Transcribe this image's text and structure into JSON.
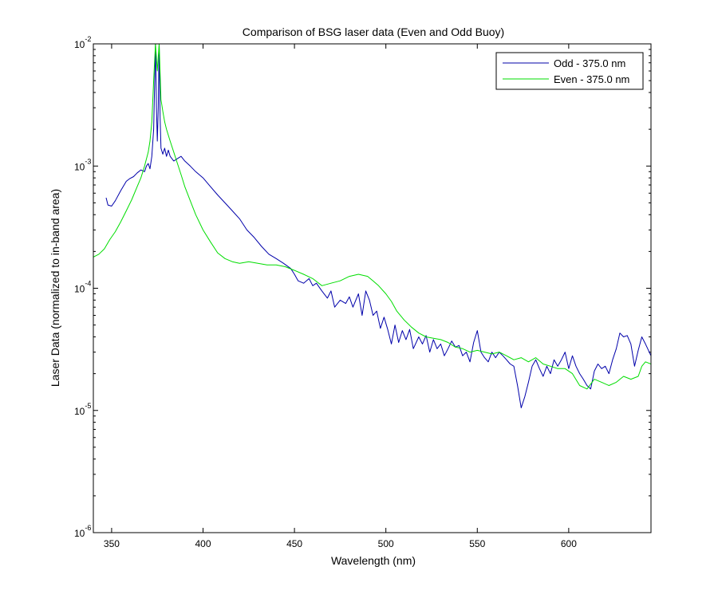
{
  "chart_data": {
    "type": "line",
    "title": "Comparison of BSG laser data (Even and Odd Buoy)",
    "xlabel": "Wavelength (nm)",
    "ylabel": "Laser Data (normalized to in-band area)",
    "xlim": [
      340,
      645
    ],
    "ylim": [
      1e-06,
      0.01
    ],
    "yscale": "log",
    "xticks": [
      350,
      400,
      450,
      500,
      550,
      600
    ],
    "yticks": [
      {
        "value": 1e-06,
        "base": "10",
        "exp": "-6"
      },
      {
        "value": 1e-05,
        "base": "10",
        "exp": "-5"
      },
      {
        "value": 0.0001,
        "base": "10",
        "exp": "-4"
      },
      {
        "value": 0.001,
        "base": "10",
        "exp": "-3"
      },
      {
        "value": 0.01,
        "base": "10",
        "exp": "-2"
      }
    ],
    "grid": false,
    "legend": "top-right",
    "series": [
      {
        "name": "Odd - 375.0 nm",
        "color": "#0000aa",
        "x": [
          347,
          348,
          350,
          352,
          355,
          358,
          360,
          362,
          364,
          366,
          368,
          369,
          370,
          371,
          372,
          373,
          374,
          374.5,
          375,
          375.5,
          376,
          376.5,
          377,
          378,
          379,
          380,
          381,
          382,
          383,
          384,
          386,
          388,
          390,
          393,
          396,
          400,
          404,
          408,
          412,
          416,
          420,
          424,
          428,
          432,
          436,
          440,
          444,
          448,
          450,
          452,
          455,
          458,
          460,
          462,
          465,
          468,
          470,
          472,
          475,
          478,
          480,
          482,
          485,
          487,
          489,
          491,
          493,
          495,
          497,
          499,
          501,
          503,
          505,
          507,
          509,
          511,
          513,
          515,
          518,
          520,
          522,
          524,
          526,
          528,
          530,
          532,
          534,
          536,
          538,
          540,
          542,
          544,
          546,
          548,
          550,
          552,
          554,
          556,
          558,
          560,
          562,
          564,
          566,
          568,
          570,
          572,
          574,
          576,
          578,
          580,
          582,
          584,
          586,
          588,
          590,
          592,
          594,
          596,
          598,
          600,
          602,
          604,
          606,
          608,
          610,
          612,
          614,
          616,
          618,
          620,
          622,
          624,
          626,
          628,
          630,
          632,
          634,
          636,
          638,
          640,
          642,
          645
        ],
        "y": [
          0.00055,
          0.00048,
          0.00047,
          0.00052,
          0.00063,
          0.00075,
          0.00079,
          0.00082,
          0.00088,
          0.00093,
          0.0009,
          0.001,
          0.00105,
          0.00095,
          0.0012,
          0.002,
          0.01,
          0.003,
          0.0016,
          0.003,
          0.01,
          0.0025,
          0.0014,
          0.00125,
          0.0014,
          0.0012,
          0.00135,
          0.0012,
          0.00115,
          0.0011,
          0.00115,
          0.0012,
          0.0011,
          0.001,
          0.0009,
          0.0008,
          0.00068,
          0.00058,
          0.0005,
          0.00043,
          0.00037,
          0.0003,
          0.00026,
          0.00022,
          0.00019,
          0.000175,
          0.00016,
          0.000145,
          0.00013,
          0.000115,
          0.00011,
          0.00012,
          0.000105,
          0.00011,
          9.5e-05,
          8.3e-05,
          9.5e-05,
          7e-05,
          8e-05,
          7.5e-05,
          8.5e-05,
          7e-05,
          9e-05,
          6e-05,
          9.5e-05,
          8e-05,
          6e-05,
          6.5e-05,
          4.7e-05,
          5.8e-05,
          4.6e-05,
          3.5e-05,
          5e-05,
          3.6e-05,
          4.5e-05,
          3.8e-05,
          4.6e-05,
          3.2e-05,
          4e-05,
          3.5e-05,
          4.1e-05,
          3e-05,
          3.8e-05,
          3.2e-05,
          3.5e-05,
          2.8e-05,
          3.2e-05,
          3.7e-05,
          3.3e-05,
          3.4e-05,
          2.8e-05,
          3e-05,
          2.5e-05,
          3.6e-05,
          4.5e-05,
          3e-05,
          2.7e-05,
          2.5e-05,
          3e-05,
          2.7e-05,
          3e-05,
          2.8e-05,
          2.6e-05,
          2.4e-05,
          2.3e-05,
          1.6e-05,
          1.05e-05,
          1.3e-05,
          1.7e-05,
          2.3e-05,
          2.6e-05,
          2.2e-05,
          1.9e-05,
          2.3e-05,
          2e-05,
          2.6e-05,
          2.3e-05,
          2.6e-05,
          3e-05,
          2.2e-05,
          2.8e-05,
          2.3e-05,
          2e-05,
          1.8e-05,
          1.6e-05,
          1.5e-05,
          2.1e-05,
          2.4e-05,
          2.2e-05,
          2.3e-05,
          2e-05,
          2.6e-05,
          3.2e-05,
          4.3e-05,
          4e-05,
          4.1e-05,
          3.5e-05,
          2.3e-05,
          3.1e-05,
          4e-05,
          3.5e-05,
          2.8e-05
        ]
      },
      {
        "name": "Even - 375.0 nm",
        "color": "#00dd00",
        "x": [
          340,
          343,
          346,
          349,
          352,
          355,
          358,
          361,
          364,
          366,
          368,
          370,
          371,
          372,
          373,
          374,
          375,
          376,
          377,
          378,
          379,
          380,
          382,
          384,
          386,
          388,
          390,
          393,
          396,
          400,
          404,
          408,
          412,
          416,
          420,
          425,
          430,
          435,
          440,
          445,
          450,
          455,
          460,
          465,
          470,
          475,
          480,
          485,
          490,
          493,
          496,
          500,
          503,
          506,
          510,
          514,
          518,
          522,
          526,
          530,
          534,
          538,
          542,
          546,
          550,
          554,
          558,
          562,
          566,
          570,
          574,
          578,
          582,
          586,
          590,
          594,
          598,
          602,
          606,
          610,
          614,
          618,
          622,
          626,
          630,
          634,
          638,
          640,
          642,
          645
        ],
        "y": [
          0.00018,
          0.00019,
          0.00021,
          0.00025,
          0.00029,
          0.00035,
          0.00043,
          0.00053,
          0.00068,
          0.0008,
          0.001,
          0.0013,
          0.0016,
          0.0023,
          0.005,
          0.01,
          0.006,
          0.01,
          0.0035,
          0.0028,
          0.0023,
          0.002,
          0.0016,
          0.0013,
          0.00105,
          0.00085,
          0.00068,
          0.00052,
          0.0004,
          0.0003,
          0.00024,
          0.000195,
          0.000175,
          0.000165,
          0.00016,
          0.000165,
          0.00016,
          0.000155,
          0.000155,
          0.00015,
          0.00014,
          0.00013,
          0.00012,
          0.000105,
          0.00011,
          0.000115,
          0.000125,
          0.00013,
          0.000125,
          0.000115,
          0.000105,
          9e-05,
          7.8e-05,
          6.5e-05,
          5.5e-05,
          4.8e-05,
          4.3e-05,
          4e-05,
          3.9e-05,
          3.8e-05,
          3.6e-05,
          3.3e-05,
          3.2e-05,
          3e-05,
          3.1e-05,
          3e-05,
          2.9e-05,
          3e-05,
          2.8e-05,
          2.6e-05,
          2.7e-05,
          2.5e-05,
          2.7e-05,
          2.4e-05,
          2.3e-05,
          2.2e-05,
          2.2e-05,
          2e-05,
          1.6e-05,
          1.5e-05,
          1.8e-05,
          1.7e-05,
          1.6e-05,
          1.7e-05,
          1.9e-05,
          1.8e-05,
          1.9e-05,
          2.3e-05,
          2.5e-05,
          2.4e-05
        ]
      }
    ]
  }
}
